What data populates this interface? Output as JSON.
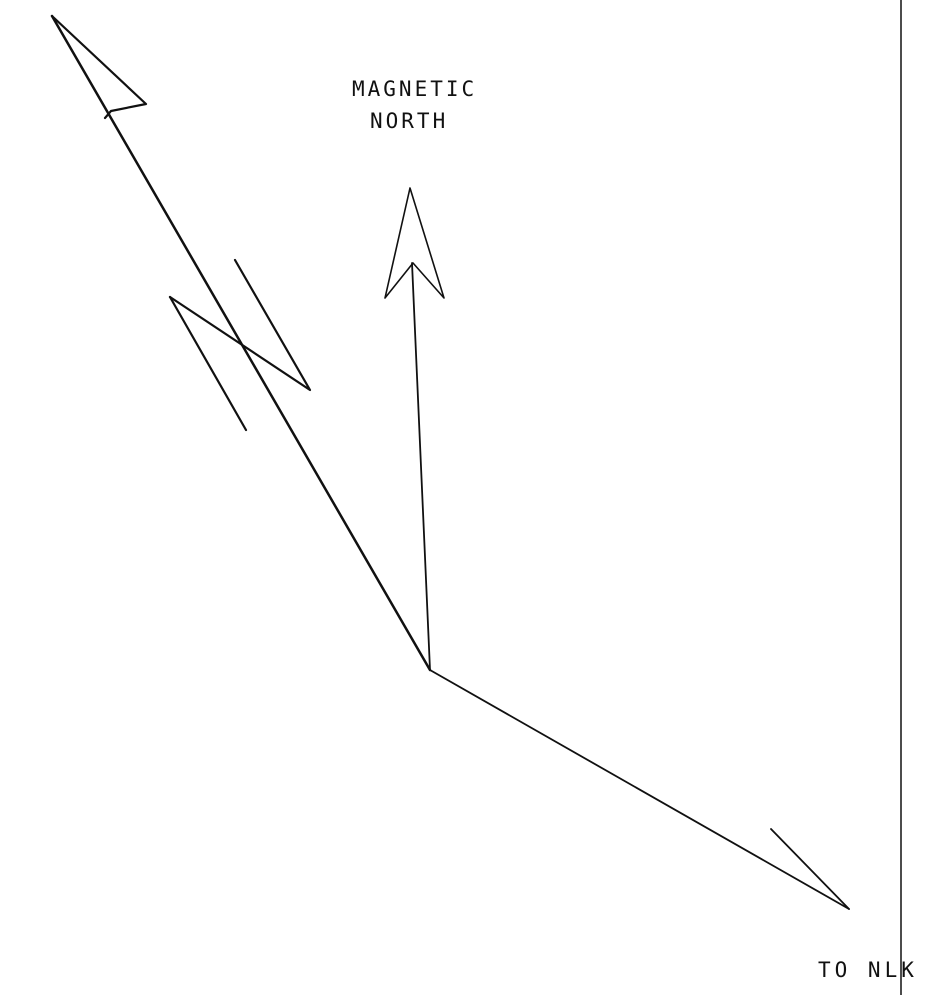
{
  "labels": {
    "magnetic_north_line1": "MAGNETIC",
    "magnetic_north_line2": "NORTH",
    "destination": "TO NLK"
  },
  "colors": {
    "ink": "#111111",
    "background": "#ffffff"
  }
}
